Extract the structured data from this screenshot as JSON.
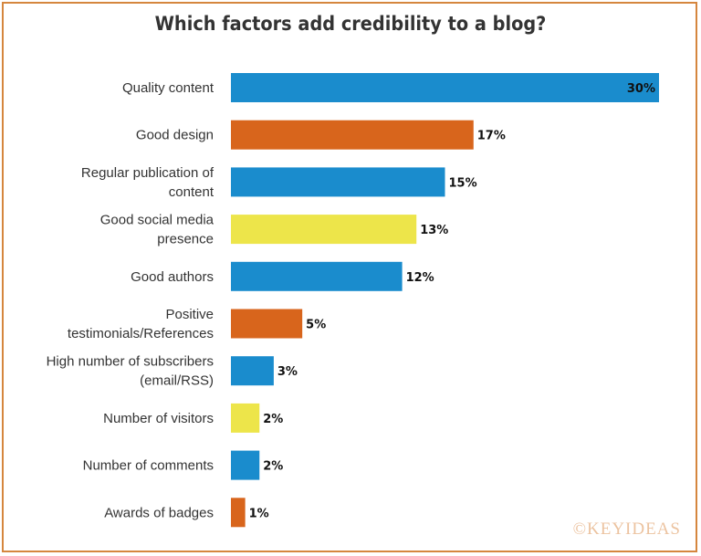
{
  "chart_data": {
    "type": "bar",
    "orientation": "horizontal",
    "title": "Which factors add credibility to a blog?",
    "categories": [
      [
        "Quality content"
      ],
      [
        "Good design"
      ],
      [
        "Regular publication of",
        "content"
      ],
      [
        "Good social media",
        "presence"
      ],
      [
        "Good authors"
      ],
      [
        "Positive",
        "testimonials/References"
      ],
      [
        "High number of subscribers",
        "(email/RSS)"
      ],
      [
        "Number of visitors"
      ],
      [
        "Number of comments"
      ],
      [
        "Awards of badges"
      ]
    ],
    "values": [
      30,
      17,
      15,
      13,
      12,
      5,
      3,
      2,
      2,
      1
    ],
    "value_labels": [
      "30%",
      "17%",
      "15%",
      "13%",
      "12%",
      "5%",
      "3%",
      "2%",
      "2%",
      "1%"
    ],
    "bar_colors": [
      "#1a8ccd",
      "#d8651c",
      "#1a8ccd",
      "#ede54a",
      "#1a8ccd",
      "#d8651c",
      "#1a8ccd",
      "#ede54a",
      "#1a8ccd",
      "#d8651c"
    ],
    "xlim": [
      0,
      30
    ],
    "grid": false,
    "legend": "none"
  },
  "watermark": "©KEYIDEAS"
}
